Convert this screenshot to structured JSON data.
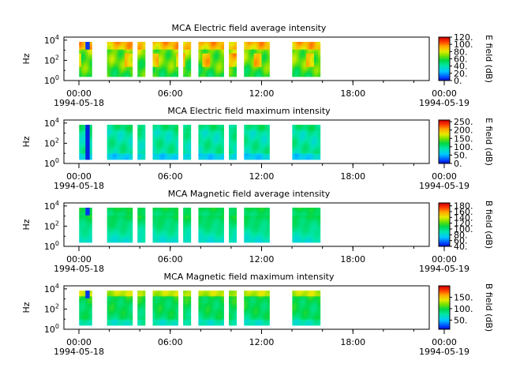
{
  "chart_data": [
    {
      "type": "heatmap",
      "title": "MCA  Electric field average intensity",
      "ylabel": "Hz",
      "y_scale": "log",
      "y_ticks": [
        {
          "exp": "0",
          "value": 1
        },
        {
          "exp": "2",
          "value": 100
        },
        {
          "exp": "4",
          "value": 10000
        }
      ],
      "x_ticks": [
        "00:00",
        "06:00",
        "12:00",
        "18:00",
        "00:00"
      ],
      "x_start_date": "1994-05-18",
      "x_end_date": "1994-05-19",
      "colorbar": {
        "label": "E field (dB)",
        "range": [
          0,
          120
        ],
        "ticks": [
          "0.",
          "20.",
          "40.",
          "60.",
          "80.",
          "100.",
          "120."
        ]
      },
      "data_intervals_utc": [
        [
          "01:00",
          "01:50"
        ],
        [
          "02:50",
          "04:30"
        ],
        [
          "04:50",
          "05:20"
        ],
        [
          "05:50",
          "07:30"
        ],
        [
          "07:50",
          "08:20"
        ],
        [
          "08:50",
          "10:30"
        ],
        [
          "10:50",
          "11:20"
        ],
        [
          "11:50",
          "13:30"
        ],
        [
          "15:00",
          "16:50"
        ]
      ],
      "pattern": "avg_e"
    },
    {
      "type": "heatmap",
      "title": "MCA  Electric field maximum intensity",
      "ylabel": "Hz",
      "y_scale": "log",
      "y_ticks": [
        {
          "exp": "0",
          "value": 1
        },
        {
          "exp": "2",
          "value": 100
        },
        {
          "exp": "4",
          "value": 10000
        }
      ],
      "x_ticks": [
        "00:00",
        "06:00",
        "12:00",
        "18:00",
        "00:00"
      ],
      "x_start_date": "1994-05-18",
      "x_end_date": "1994-05-19",
      "colorbar": {
        "label": "E field (dB)",
        "range": [
          0,
          260
        ],
        "ticks": [
          "0.",
          "50.",
          "100.",
          "150.",
          "200.",
          "250."
        ]
      },
      "data_intervals_utc": [
        [
          "01:00",
          "01:50"
        ],
        [
          "02:50",
          "04:30"
        ],
        [
          "04:50",
          "05:20"
        ],
        [
          "05:50",
          "07:30"
        ],
        [
          "07:50",
          "08:20"
        ],
        [
          "08:50",
          "10:30"
        ],
        [
          "10:50",
          "11:20"
        ],
        [
          "11:50",
          "13:30"
        ],
        [
          "15:00",
          "16:50"
        ]
      ],
      "pattern": "max_e"
    },
    {
      "type": "heatmap",
      "title": "MCA  Magnetic field average intensity",
      "ylabel": "Hz",
      "y_scale": "log",
      "y_ticks": [
        {
          "exp": "0",
          "value": 1
        },
        {
          "exp": "2",
          "value": 100
        },
        {
          "exp": "4",
          "value": 10000
        }
      ],
      "x_ticks": [
        "00:00",
        "06:00",
        "12:00",
        "18:00",
        "00:00"
      ],
      "x_start_date": "1994-05-18",
      "x_end_date": "1994-05-19",
      "colorbar": {
        "label": "B field (dB)",
        "range": [
          40,
          190
        ],
        "ticks": [
          "40.",
          "60.",
          "80.",
          "100.",
          "120.",
          "140.",
          "160.",
          "180."
        ]
      },
      "data_intervals_utc": [
        [
          "01:00",
          "01:50"
        ],
        [
          "02:50",
          "04:30"
        ],
        [
          "04:50",
          "05:20"
        ],
        [
          "05:50",
          "07:30"
        ],
        [
          "07:50",
          "08:20"
        ],
        [
          "08:50",
          "10:30"
        ],
        [
          "10:50",
          "11:20"
        ],
        [
          "11:50",
          "13:30"
        ],
        [
          "15:00",
          "16:50"
        ]
      ],
      "pattern": "avg_b"
    },
    {
      "type": "heatmap",
      "title": "MCA  Magnetic field maximum intensity",
      "ylabel": "Hz",
      "y_scale": "log",
      "y_ticks": [
        {
          "exp": "0",
          "value": 1
        },
        {
          "exp": "2",
          "value": 100
        },
        {
          "exp": "4",
          "value": 10000
        }
      ],
      "x_ticks": [
        "00:00",
        "06:00",
        "12:00",
        "18:00",
        "00:00"
      ],
      "x_start_date": "1994-05-18",
      "x_end_date": "1994-05-19",
      "colorbar": {
        "label": "B field (dB)",
        "range": [
          10,
          200
        ],
        "ticks": [
          "50.",
          "100.",
          "150."
        ]
      },
      "data_intervals_utc": [
        [
          "01:00",
          "01:50"
        ],
        [
          "02:50",
          "04:30"
        ],
        [
          "04:50",
          "05:20"
        ],
        [
          "05:50",
          "07:30"
        ],
        [
          "07:50",
          "08:20"
        ],
        [
          "08:50",
          "10:30"
        ],
        [
          "10:50",
          "11:20"
        ],
        [
          "11:50",
          "13:30"
        ],
        [
          "15:00",
          "16:50"
        ]
      ],
      "pattern": "max_b"
    }
  ]
}
